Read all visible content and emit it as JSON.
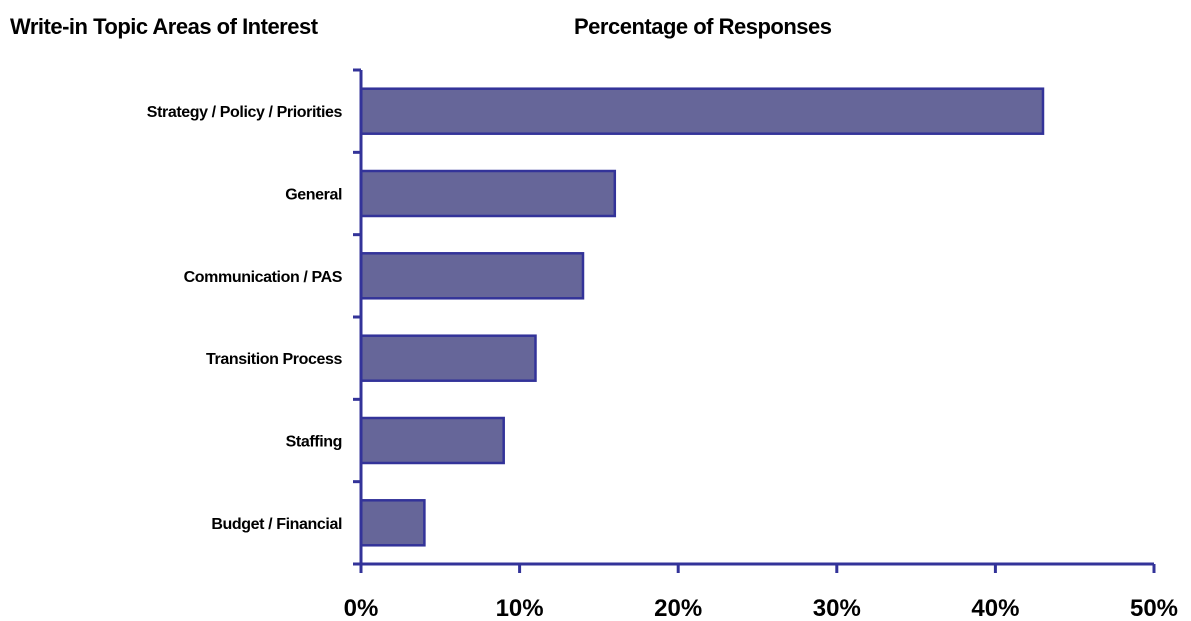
{
  "headers": {
    "left": "Write-in Topic Areas of Interest",
    "right": "Percentage of Responses"
  },
  "colors": {
    "bar_fill": "#666699",
    "axis": "#333399"
  },
  "chart_data": {
    "type": "bar",
    "orientation": "horizontal",
    "categories": [
      "Strategy / Policy / Priorities",
      "General",
      "Communication / PAS",
      "Transition Process",
      "Staffing",
      "Budget / Financial"
    ],
    "values": [
      43,
      16,
      14,
      11,
      9,
      4
    ],
    "xlim": [
      0,
      50
    ],
    "xticks": [
      "0%",
      "10%",
      "20%",
      "30%",
      "40%",
      "50%"
    ],
    "grid": false,
    "legend": "none"
  }
}
